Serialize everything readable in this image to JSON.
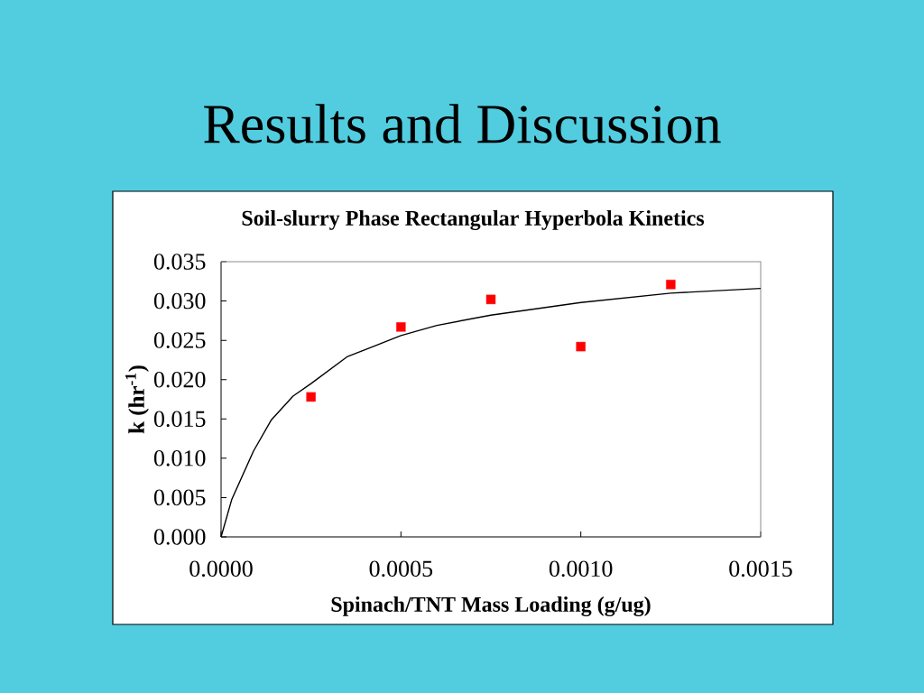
{
  "chart_data": {
    "type": "scatter",
    "title": "Results and Discussion",
    "subtitle": "Soil-slurry Phase Rectangular Hyperbola Kinetics",
    "xlabel": "Spinach/TNT Mass Loading (g/ug)",
    "ylabel": "k (hr$^{-1}$)",
    "series": [
      {
        "color": "#ff0000",
        "marker": "square",
        "x": [
          0.00025,
          0.0005,
          0.00075,
          0.001,
          0.00125
        ],
        "values": [
          0.0178,
          0.0267,
          0.0302,
          0.0242,
          0.0321
        ]
      },
      {
        "type": "line",
        "color": "#000000",
        "marker": "none",
        "x": [
          0,
          3e-05,
          9e-05,
          0.00014,
          0.0002,
          0.00025,
          0.00035,
          0.0004,
          0.0005,
          0.0006,
          0.00075,
          0.001,
          0.00125,
          0.0015
        ],
        "values": [
          0,
          0.0048,
          0.0109,
          0.0149,
          0.0179,
          0.0195,
          0.0229,
          0.0238,
          0.0256,
          0.0269,
          0.0282,
          0.0298,
          0.031,
          0.0316
        ]
      }
    ],
    "xlim": [
      0,
      0.0015
    ],
    "ylim": [
      0,
      0.035
    ],
    "xticks": [
      {
        "value": 0,
        "label": "0.0000"
      },
      {
        "value": 0.0005,
        "label": "0.0005"
      },
      {
        "value": 0.001,
        "label": "0.0010"
      },
      {
        "value": 0.0015,
        "label": "0.0015"
      }
    ],
    "yticks": [
      {
        "value": 0,
        "label": "0.000"
      },
      {
        "value": 0.005,
        "label": "0.005"
      },
      {
        "value": 0.01,
        "label": "0.010"
      },
      {
        "value": 0.015,
        "label": "0.015"
      },
      {
        "value": 0.02,
        "label": "0.020"
      },
      {
        "value": 0.025,
        "label": "0.025"
      },
      {
        "value": 0.03,
        "label": "0.030"
      },
      {
        "value": 0.035,
        "label": "0.035"
      }
    ]
  }
}
